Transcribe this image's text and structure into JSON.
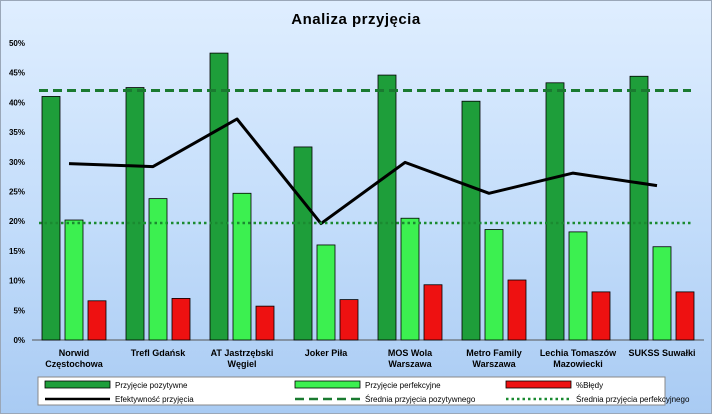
{
  "chart_data": {
    "type": "bar",
    "title": "Analiza przyjęcia",
    "categories": [
      [
        "Norwid",
        "Częstochowa"
      ],
      [
        "Trefl Gdańsk"
      ],
      [
        "AT Jastrzębski",
        "Węgiel"
      ],
      [
        "Joker Piła"
      ],
      [
        "MOS Wola",
        "Warszawa"
      ],
      [
        "Metro Family",
        "Warszawa"
      ],
      [
        "Lechia Tomaszów",
        "Mazowiecki"
      ],
      [
        "SUKSS Suwałki"
      ]
    ],
    "series": [
      {
        "name": "Przyjęcie pozytywne",
        "kind": "bar",
        "color": "#1e9e3a",
        "values": [
          41.0,
          42.5,
          48.3,
          32.5,
          44.6,
          40.2,
          43.3,
          44.4
        ]
      },
      {
        "name": "Przyjęcie perfekcyjne",
        "kind": "bar",
        "color": "#3cf050",
        "values": [
          20.2,
          23.8,
          24.7,
          16.0,
          20.5,
          18.6,
          18.2,
          15.7
        ]
      },
      {
        "name": "%Błędy",
        "kind": "bar",
        "color": "#ee1111",
        "values": [
          6.6,
          7.0,
          5.7,
          6.8,
          9.3,
          10.1,
          8.1,
          8.1
        ]
      },
      {
        "name": "Efektywność przyjęcia",
        "kind": "line",
        "color": "#000000",
        "values": [
          29.7,
          29.2,
          37.2,
          19.6,
          29.9,
          24.7,
          28.1,
          26.0
        ]
      },
      {
        "name": "Średnia przyjęcia pozytywnego",
        "kind": "hline-dashed",
        "color": "#1a7a30",
        "value": 42.0
      },
      {
        "name": "Średnia przyjęcia perfekcyjnego",
        "kind": "hline-dotted",
        "color": "#1a8a30",
        "value": 19.7
      }
    ],
    "ylim": [
      0,
      50
    ],
    "yticks": [
      "0%",
      "5%",
      "10%",
      "15%",
      "20%",
      "25%",
      "30%",
      "35%",
      "40%",
      "45%",
      "50%"
    ],
    "grid": false,
    "legend_position": "bottom"
  }
}
